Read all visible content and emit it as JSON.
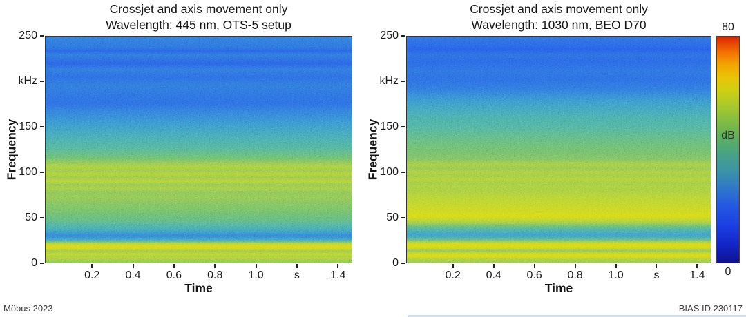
{
  "figure": {
    "footer_left": "Möbus 2023",
    "footer_right": "BIAS ID 230117",
    "background": "#ffffff"
  },
  "colorbar": {
    "label": "dB",
    "max_label": "80",
    "min_label": "0",
    "value_range_db": [
      0,
      80
    ],
    "stops": [
      {
        "t": 0.0,
        "color": "#10138f"
      },
      {
        "t": 0.08,
        "color": "#1225c8"
      },
      {
        "t": 0.16,
        "color": "#1a3ee3"
      },
      {
        "t": 0.25,
        "color": "#2458e0"
      },
      {
        "t": 0.33,
        "color": "#2f78c8"
      },
      {
        "t": 0.41,
        "color": "#3c95a4"
      },
      {
        "t": 0.48,
        "color": "#47a284"
      },
      {
        "t": 0.55,
        "color": "#5dae60"
      },
      {
        "t": 0.62,
        "color": "#7fbb44"
      },
      {
        "t": 0.69,
        "color": "#a7c92c"
      },
      {
        "t": 0.76,
        "color": "#cdd014"
      },
      {
        "t": 0.82,
        "color": "#e9c406"
      },
      {
        "t": 0.88,
        "color": "#f2a201"
      },
      {
        "t": 0.93,
        "color": "#f47102"
      },
      {
        "t": 1.0,
        "color": "#d92603"
      }
    ]
  },
  "chart_data": [
    {
      "type": "heatmap",
      "title_line1": "Crossjet and axis movement only",
      "title_line2": "Wavelength: 445 nm, OTS-5 setup",
      "xlabel": "Time",
      "ylabel": "Frequency",
      "x_range": [
        -0.03,
        1.47
      ],
      "y_range_khz": [
        0,
        250
      ],
      "value_range_db": [
        0,
        80
      ],
      "x_ticks": [
        {
          "value": 0.2,
          "label": "0.2"
        },
        {
          "value": 0.4,
          "label": "0.4"
        },
        {
          "value": 0.6,
          "label": "0.6"
        },
        {
          "value": 0.8,
          "label": "0.8"
        },
        {
          "value": 1.0,
          "label": "1.0"
        },
        {
          "value": 1.2,
          "label": "s"
        },
        {
          "value": 1.4,
          "label": "1.4"
        }
      ],
      "y_ticks": [
        {
          "value": 250,
          "label": "250"
        },
        {
          "value": 200,
          "label": "kHz"
        },
        {
          "value": 150,
          "label": "150"
        },
        {
          "value": 100,
          "label": "100"
        },
        {
          "value": 50,
          "label": "50"
        },
        {
          "value": 0,
          "label": "0"
        }
      ],
      "profile_db_by_khz": [
        [
          250,
          24
        ],
        [
          238,
          22
        ],
        [
          234,
          19
        ],
        [
          230,
          23
        ],
        [
          220,
          19
        ],
        [
          214,
          23
        ],
        [
          205,
          21
        ],
        [
          196,
          23
        ],
        [
          186,
          22
        ],
        [
          176,
          21
        ],
        [
          168,
          24
        ],
        [
          160,
          26
        ],
        [
          150,
          29
        ],
        [
          143,
          32
        ],
        [
          136,
          35
        ],
        [
          128,
          38
        ],
        [
          122,
          41
        ],
        [
          116,
          44
        ],
        [
          110,
          49
        ],
        [
          106,
          53
        ],
        [
          102,
          50
        ],
        [
          98,
          54
        ],
        [
          94,
          50
        ],
        [
          90,
          55
        ],
        [
          86,
          49
        ],
        [
          82,
          52
        ],
        [
          78,
          48
        ],
        [
          72,
          49
        ],
        [
          66,
          47
        ],
        [
          60,
          46
        ],
        [
          54,
          44
        ],
        [
          48,
          42
        ],
        [
          42,
          38
        ],
        [
          37,
          33
        ],
        [
          33,
          28
        ],
        [
          30,
          25
        ],
        [
          27,
          27
        ],
        [
          25,
          33
        ],
        [
          23,
          44
        ],
        [
          21,
          55
        ],
        [
          19,
          59
        ],
        [
          17,
          62
        ],
        [
          15,
          58
        ],
        [
          13,
          50
        ],
        [
          11,
          53
        ],
        [
          9,
          57
        ],
        [
          7,
          52
        ],
        [
          5,
          55
        ],
        [
          3,
          50
        ],
        [
          0,
          49
        ]
      ]
    },
    {
      "type": "heatmap",
      "title_line1": "Crossjet and axis movement only",
      "title_line2": "Wavelength: 1030 nm, BEO D70",
      "xlabel": "Time",
      "ylabel": "Frequency",
      "x_range": [
        -0.03,
        1.47
      ],
      "y_range_khz": [
        0,
        250
      ],
      "value_range_db": [
        0,
        80
      ],
      "x_ticks": [
        {
          "value": 0.2,
          "label": "0.2"
        },
        {
          "value": 0.4,
          "label": "0.4"
        },
        {
          "value": 0.6,
          "label": "0.6"
        },
        {
          "value": 0.8,
          "label": "0.8"
        },
        {
          "value": 1.0,
          "label": "1.0"
        },
        {
          "value": 1.2,
          "label": "s"
        },
        {
          "value": 1.4,
          "label": "1.4"
        }
      ],
      "y_ticks": [
        {
          "value": 250,
          "label": "250"
        },
        {
          "value": 200,
          "label": "kHz"
        },
        {
          "value": 150,
          "label": "150"
        },
        {
          "value": 100,
          "label": "100"
        },
        {
          "value": 50,
          "label": "50"
        },
        {
          "value": 0,
          "label": "0"
        }
      ],
      "profile_db_by_khz": [
        [
          250,
          22
        ],
        [
          240,
          20
        ],
        [
          236,
          18
        ],
        [
          230,
          21
        ],
        [
          222,
          20
        ],
        [
          212,
          22
        ],
        [
          202,
          21
        ],
        [
          192,
          23
        ],
        [
          184,
          26
        ],
        [
          176,
          29
        ],
        [
          168,
          32
        ],
        [
          160,
          35
        ],
        [
          152,
          37
        ],
        [
          144,
          40
        ],
        [
          136,
          42
        ],
        [
          128,
          44
        ],
        [
          120,
          45
        ],
        [
          114,
          47
        ],
        [
          108,
          52
        ],
        [
          104,
          49
        ],
        [
          100,
          53
        ],
        [
          96,
          51
        ],
        [
          92,
          54
        ],
        [
          88,
          51
        ],
        [
          84,
          53
        ],
        [
          80,
          52
        ],
        [
          76,
          54
        ],
        [
          72,
          55
        ],
        [
          68,
          56
        ],
        [
          64,
          57
        ],
        [
          60,
          58
        ],
        [
          56,
          59
        ],
        [
          52,
          61
        ],
        [
          49,
          58
        ],
        [
          46,
          54
        ],
        [
          43,
          49
        ],
        [
          40,
          43
        ],
        [
          37,
          38
        ],
        [
          34,
          33
        ],
        [
          31,
          30
        ],
        [
          29,
          31
        ],
        [
          27,
          36
        ],
        [
          25,
          44
        ],
        [
          23,
          52
        ],
        [
          21,
          59
        ],
        [
          19,
          63
        ],
        [
          17,
          60
        ],
        [
          15,
          55
        ],
        [
          13,
          48
        ],
        [
          11,
          55
        ],
        [
          9,
          60
        ],
        [
          7,
          62
        ],
        [
          5,
          56
        ],
        [
          3,
          52
        ],
        [
          0,
          50
        ]
      ]
    }
  ]
}
